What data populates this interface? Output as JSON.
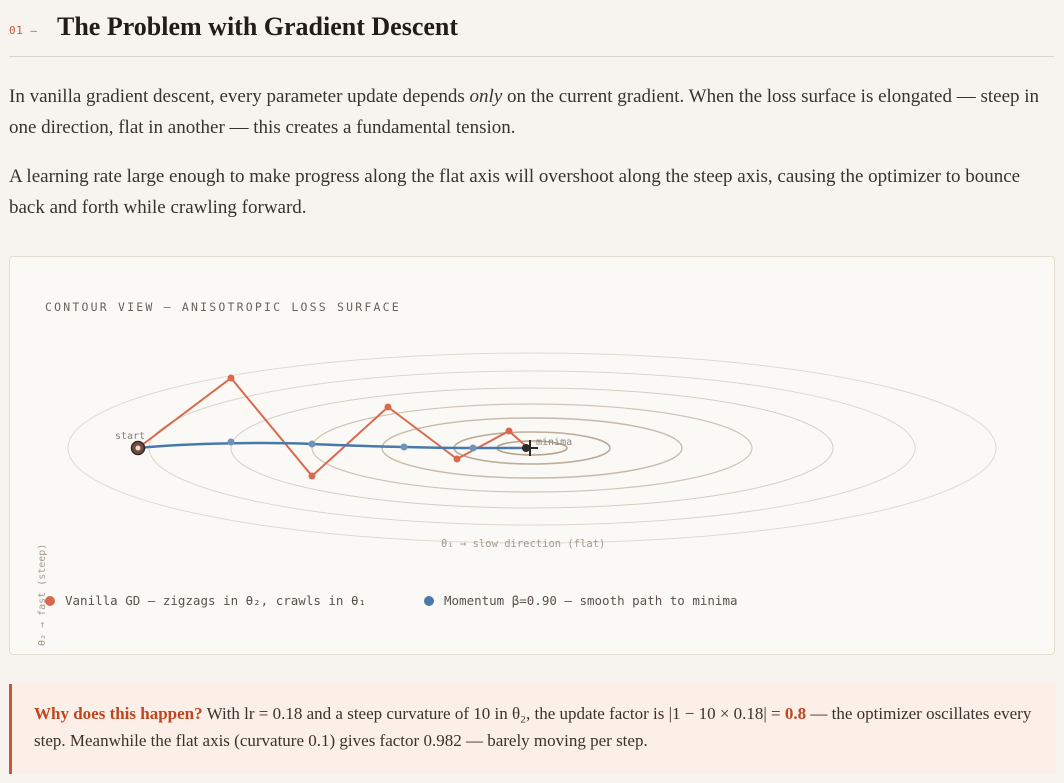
{
  "section": {
    "number": "01 –",
    "title": "The Problem with Gradient Descent"
  },
  "intro": {
    "p1_before": "In vanilla gradient descent, every parameter update depends ",
    "p1_em": "only",
    "p1_after": " on the current gradient. When the loss surface is elongated — steep in one direction, flat in another — this creates a fundamental tension.",
    "p2": "A learning rate large enough to make progress along the flat axis will overshoot along the steep axis, causing the optimizer to bounce back and forth while crawling forward."
  },
  "figure": {
    "title": "CONTOUR VIEW — ANISOTROPIC LOSS SURFACE",
    "ylabel": "θ₂ → fast (steep)",
    "xlabel": "θ₁ → slow direction (flat)",
    "start_label": "start",
    "minima_label": "minima",
    "legend": [
      {
        "label": "Vanilla GD — zigzags in θ₂, crawls in θ₁",
        "color": "#d9694e"
      },
      {
        "label": "Momentum β=0.90 — smooth path to minima",
        "color": "#4a79a8"
      }
    ],
    "colors": {
      "vanilla": "#d9694e",
      "momentum": "#4a79a8",
      "contour": "#cdc3b6",
      "minima": "#2e2a27"
    }
  },
  "callout": {
    "question": "Why does this happen?",
    "text_before": " With lr = 0.18 and a steep curvature of 10 in θ₂, the update factor is |1 − 10 × 0.18| = ",
    "highlight": "0.8",
    "text_after": " — the optimizer oscillates every step. Meanwhile the flat axis (curvature 0.1) gives factor 0.982 — barely moving per step."
  }
}
